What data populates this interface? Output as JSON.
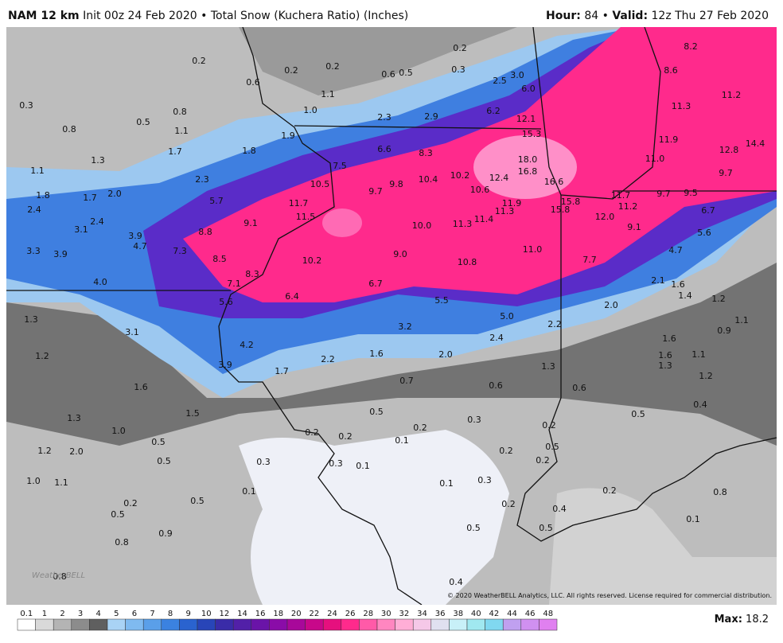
{
  "header": {
    "model": "NAM 12 km",
    "init": "Init 00z 24 Feb 2020",
    "separator": "•",
    "product": "Total Snow (Kuchera Ratio) (Inches)",
    "hour_label": "Hour:",
    "hour": "84",
    "separator2": "•",
    "valid_label": "Valid:",
    "valid": "12z Thu 27 Feb 2020"
  },
  "map": {
    "watermark": "WeatherBELL",
    "copyright": "© 2020 WeatherBELL Analytics, LLC. All rights reserved. License required for commercial distribution.",
    "labels": [
      "0.2",
      "0.2",
      "0.2",
      "0.2",
      "0.6",
      "0.6",
      "0.5",
      "0.3",
      "2.5",
      "3.0",
      "8.2",
      "8.6",
      "0.3",
      "0.8",
      "0.5",
      "1.1",
      "1.0",
      "2.3",
      "2.9",
      "6.0",
      "6.2",
      "11.3",
      "11.2",
      "0.8",
      "1.1",
      "1.9",
      "12.1",
      "15.3",
      "11.9",
      "12.8",
      "14.4",
      "1.7",
      "1.8",
      "6.6",
      "8.3",
      "18.0",
      "11.0",
      "1.3",
      "7.5",
      "16.8",
      "9.7",
      "1.1",
      "2.3",
      "10.5",
      "9.7",
      "9.8",
      "10.4",
      "10.2",
      "12.4",
      "16.6",
      "10.6",
      "1.8",
      "1.7",
      "2.0",
      "5.7",
      "11.7",
      "11.9",
      "11.3",
      "15.8",
      "11.7",
      "9.7",
      "9.5",
      "15.8",
      "11.2",
      "2.4",
      "11.5",
      "12.0",
      "6.7",
      "2.4",
      "9.1",
      "11.4",
      "11.3",
      "10.0",
      "9.1",
      "3.1",
      "8.8",
      "5.6",
      "3.9",
      "4.7",
      "7.3",
      "11.0",
      "3.3",
      "3.9",
      "9.0",
      "4.7",
      "8.5",
      "10.2",
      "10.8",
      "7.7",
      "8.3",
      "4.0",
      "7.1",
      "6.7",
      "2.1",
      "1.6",
      "1.4",
      "1.2",
      "6.4",
      "5.6",
      "5.5",
      "2.0",
      "1.3",
      "5.0",
      "1.1",
      "2.2",
      "3.2",
      "3.1",
      "0.9",
      "2.4",
      "1.6",
      "4.2",
      "1.6",
      "1.1",
      "1.2",
      "1.6",
      "2.0",
      "2.2",
      "1.3",
      "3.9",
      "1.7",
      "1.3",
      "1.2",
      "0.7",
      "0.6",
      "0.6",
      "1.6",
      "0.4",
      "1.5",
      "0.5",
      "0.5",
      "0.3",
      "1.3",
      "0.2",
      "0.2",
      "1.0",
      "0.2",
      "0.2",
      "0.5",
      "0.1",
      "0.5",
      "1.2",
      "2.0",
      "0.2",
      "0.5",
      "0.3",
      "0.3",
      "0.1",
      "0.2",
      "1.0",
      "1.1",
      "0.1",
      "0.3",
      "0.1",
      "0.2",
      "0.8",
      "0.2",
      "0.5",
      "0.2",
      "0.4",
      "0.5",
      "0.1",
      "0.5",
      "0.5",
      "0.8",
      "0.9",
      "0.8",
      "0.4"
    ]
  },
  "legend": {
    "ticks": [
      "0.1",
      "1",
      "2",
      "3",
      "4",
      "5",
      "6",
      "7",
      "8",
      "9",
      "10",
      "12",
      "14",
      "16",
      "18",
      "20",
      "22",
      "24",
      "26",
      "28",
      "30",
      "32",
      "34",
      "36",
      "38",
      "40",
      "42",
      "44",
      "46",
      "48"
    ],
    "colors": [
      "#ffffff",
      "#d9d9d9",
      "#b4b4b4",
      "#8c8c8c",
      "#5f5f5f",
      "#a9d3f5",
      "#7fbaf0",
      "#5a9fe9",
      "#3b82e0",
      "#2a63cf",
      "#2845b8",
      "#3a2ca8",
      "#5220a8",
      "#6a14a8",
      "#8a0ca8",
      "#a8089a",
      "#c8088a",
      "#e6107e",
      "#ff2a8c",
      "#ff5aa8",
      "#ff86c0",
      "#ffaed6",
      "#f5c8e8",
      "#e0e0f0",
      "#c8f0f8",
      "#a0e8f0",
      "#80d8f0",
      "#c0a0f0",
      "#d090f0",
      "#e080f0"
    ],
    "max_label": "Max:",
    "max": "18.2"
  }
}
